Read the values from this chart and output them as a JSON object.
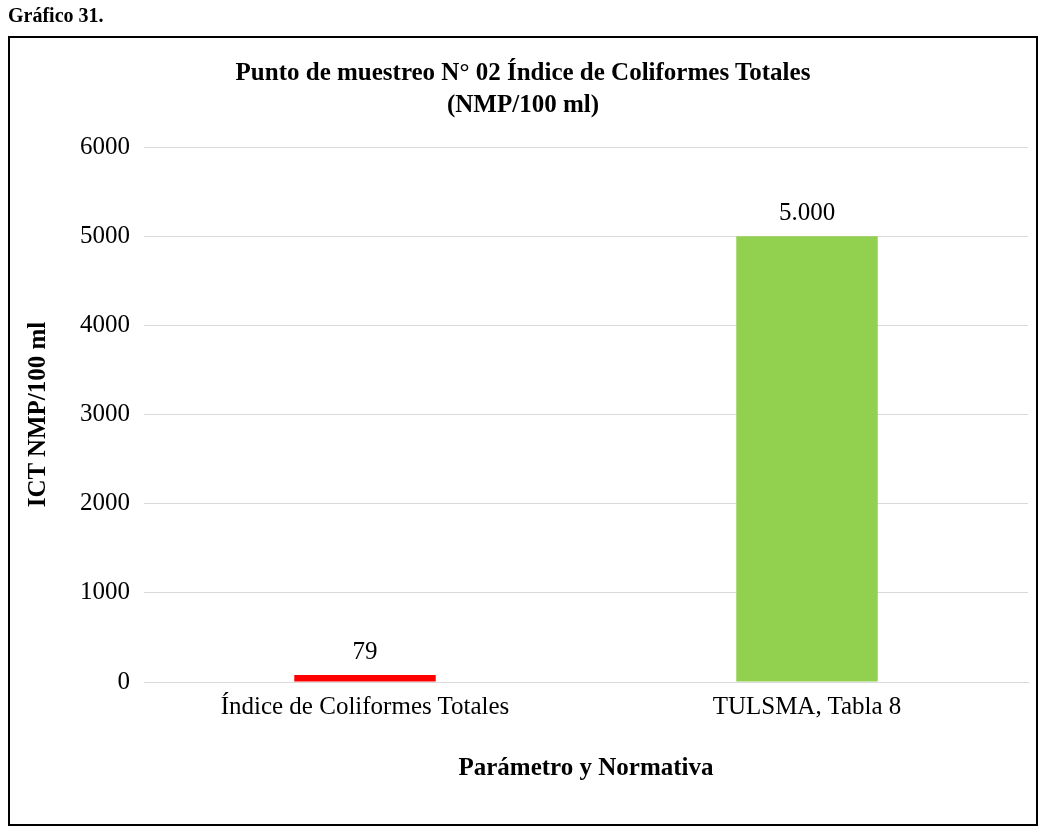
{
  "chart_data": {
    "type": "bar",
    "title": "Punto de muestreo N° 02 Índice de Coliformes Totales (NMP/100 ml)",
    "xlabel": "Parámetro y Normativa",
    "ylabel": "ICT NMP/100 ml",
    "annotations": [
      "Gráfico 31."
    ],
    "categories": [
      "Índice de Coliformes Totales",
      "TULSMA, Tabla 8"
    ],
    "values": [
      79,
      5000
    ],
    "colors": [
      "#ff0000",
      "#92d050"
    ],
    "value_labels": [
      "79",
      "5.000"
    ],
    "ylim": [
      0,
      6000
    ],
    "yticks": [
      0,
      1000,
      2000,
      3000,
      4000,
      5000,
      6000
    ],
    "grid": "y",
    "legend": false
  }
}
